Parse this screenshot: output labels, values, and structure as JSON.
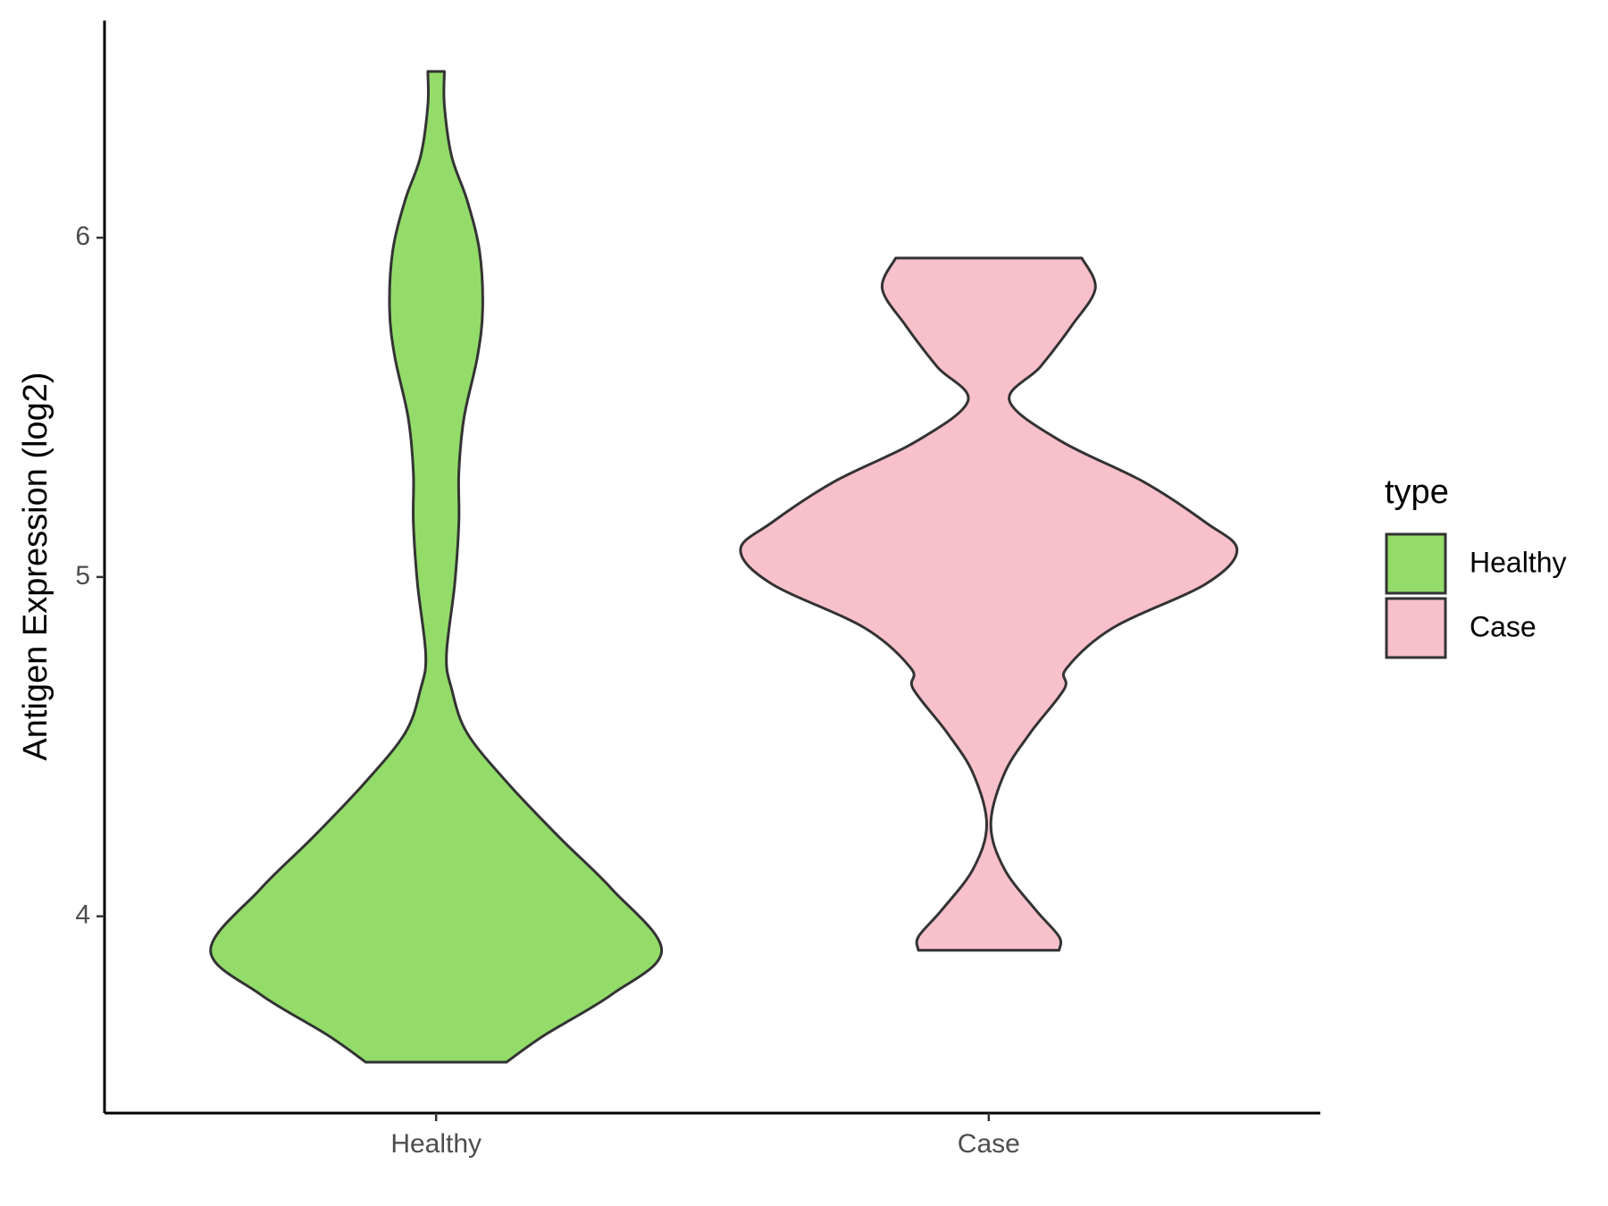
{
  "chart_data": {
    "type": "violin",
    "y_label": "Antigen Expression (log2)",
    "categories": [
      "Healthy",
      "Case"
    ],
    "legend_title": "type",
    "legend": "right",
    "series": [
      {
        "name": "Healthy",
        "color": "#93dc6a",
        "y": [
          6.49,
          6.39,
          6.24,
          6.11,
          5.96,
          5.79,
          5.65,
          5.47,
          5.31,
          5.16,
          4.98,
          4.77,
          4.67,
          4.54,
          4.39,
          4.23,
          4.08,
          3.9,
          3.77,
          3.65,
          3.57
        ],
        "density": [
          0.08,
          0.08,
          0.15,
          0.3,
          0.42,
          0.45,
          0.4,
          0.27,
          0.22,
          0.22,
          0.18,
          0.1,
          0.15,
          0.3,
          0.7,
          1.2,
          1.7,
          2.18,
          1.7,
          1.05,
          0.68
        ]
      },
      {
        "name": "Case",
        "color": "#f8c0cb",
        "y": [
          5.94,
          5.85,
          5.74,
          5.62,
          5.52,
          5.4,
          5.28,
          5.16,
          5.08,
          4.98,
          4.85,
          4.73,
          4.67,
          4.54,
          4.42,
          4.27,
          4.14,
          4.02,
          3.94,
          3.9
        ],
        "density": [
          0.9,
          1.03,
          0.8,
          0.5,
          0.2,
          0.7,
          1.5,
          2.1,
          2.4,
          2.1,
          1.2,
          0.75,
          0.73,
          0.4,
          0.15,
          0.02,
          0.15,
          0.45,
          0.68,
          0.68
        ]
      }
    ],
    "ylim": [
      3.42,
      6.64
    ],
    "yticks": [
      4,
      5,
      6
    ],
    "grid": false
  }
}
